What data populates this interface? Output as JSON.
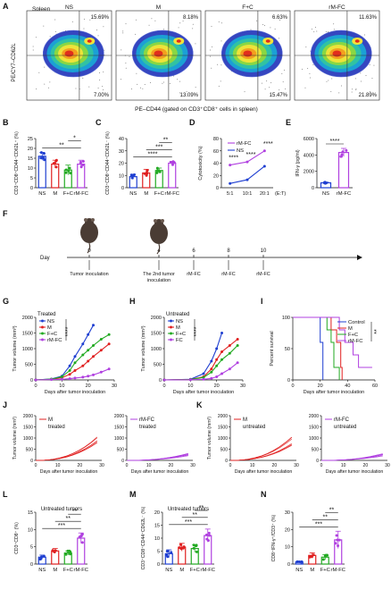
{
  "panel_letters": [
    "A",
    "B",
    "C",
    "D",
    "E",
    "F",
    "G",
    "H",
    "I",
    "J",
    "K",
    "L",
    "M",
    "N"
  ],
  "flow": {
    "title": "Spleen",
    "ylabel": "PE/CY7–CD62L",
    "xlabel": "PE–CD44 (gated on CD3⁺CD8⁺ cells in spleen)",
    "plots": [
      {
        "group": "NS",
        "ur": "15.69%",
        "lr": "7.00%"
      },
      {
        "group": "M",
        "ur": "8.18%",
        "lr": "13.09%"
      },
      {
        "group": "F+C",
        "ur": "6.63%",
        "lr": "15.47%"
      },
      {
        "group": "rM-FC",
        "ur": "11.63%",
        "lr": "21.89%"
      }
    ]
  },
  "colors": {
    "NS": "#1f3fd1",
    "M": "#e02020",
    "FC": "#22aa22",
    "rMFC": "#b040e0"
  },
  "chart_data": [
    {
      "panel": "B",
      "type": "bar",
      "ylabel": "CD3⁺CD8⁺CD44⁻CD62L⁺ (%)",
      "categories": [
        "NS",
        "M",
        "F+C",
        "rM-FC"
      ],
      "values": [
        16,
        12,
        9,
        12
      ],
      "errors": [
        2,
        2,
        2.5,
        2
      ],
      "ylim": [
        0,
        25
      ],
      "yticks": [
        "0",
        "5",
        "10",
        "15",
        "20",
        "25"
      ],
      "sig": [
        {
          "a": 0,
          "b": 3,
          "label": "**"
        },
        {
          "a": 2,
          "b": 3,
          "label": "*"
        }
      ]
    },
    {
      "panel": "C",
      "type": "bar",
      "ylabel": "CD3⁺CD8⁺CD44⁺CD62L⁻ (%)",
      "categories": [
        "NS",
        "M",
        "F+C",
        "rM-FC"
      ],
      "values": [
        9,
        12,
        14,
        20
      ],
      "errors": [
        2,
        3,
        2,
        1.5
      ],
      "ylim": [
        0,
        40
      ],
      "yticks": [
        "0",
        "10",
        "20",
        "30",
        "40"
      ],
      "sig": [
        {
          "a": 0,
          "b": 3,
          "label": "****"
        },
        {
          "a": 1,
          "b": 3,
          "label": "***"
        },
        {
          "a": 2,
          "b": 3,
          "label": "**"
        }
      ]
    },
    {
      "panel": "D",
      "type": "line",
      "ylabel": "Cytotoxicity (%)",
      "x": [
        "5:1",
        "10:1",
        "20:1"
      ],
      "xunit": "(E:T)",
      "ylim": [
        0,
        80
      ],
      "yticks": [
        "0",
        "20",
        "40",
        "60",
        "80"
      ],
      "series": [
        {
          "name": "rM-FC",
          "values": [
            37,
            42,
            60
          ]
        },
        {
          "name": "NS",
          "values": [
            7,
            13,
            35
          ]
        }
      ],
      "sig_labels": [
        "****",
        "****",
        "****"
      ]
    },
    {
      "panel": "E",
      "type": "bar",
      "ylabel": "IFN-γ (pg/ml)",
      "categories": [
        "NS",
        "rM-FC"
      ],
      "values": [
        600,
        4300
      ],
      "errors": [
        80,
        500
      ],
      "ylim": [
        0,
        6000
      ],
      "yticks": [
        "0",
        "2000",
        "4000",
        "6000"
      ],
      "sig": [
        {
          "a": 0,
          "b": 1,
          "label": "****"
        }
      ]
    },
    {
      "panel": "G",
      "type": "line",
      "ylabel": "Tumor volume (mm³)",
      "xlabel": "Days after tumor inoculation",
      "title": "Treated",
      "ylim": [
        0,
        2000
      ],
      "yticks": [
        "0",
        "500",
        "1000",
        "1500",
        "2000"
      ],
      "xticks": [
        "0",
        "10",
        "20",
        "30"
      ],
      "xlim": [
        0,
        30
      ],
      "sig_label": "****",
      "series": [
        {
          "name": "NS",
          "x": [
            0,
            6,
            10,
            13,
            15,
            18,
            20,
            22
          ],
          "values": [
            0,
            30,
            120,
            450,
            750,
            1150,
            1450,
            1750
          ]
        },
        {
          "name": "M",
          "x": [
            0,
            6,
            10,
            13,
            15,
            18,
            20,
            22,
            25,
            28
          ],
          "values": [
            0,
            20,
            70,
            180,
            300,
            450,
            600,
            750,
            950,
            1150
          ]
        },
        {
          "name": "F+C",
          "x": [
            0,
            6,
            10,
            13,
            15,
            18,
            20,
            22,
            25,
            28
          ],
          "values": [
            0,
            25,
            100,
            300,
            550,
            800,
            950,
            1100,
            1300,
            1450
          ]
        },
        {
          "name": "rM-FC",
          "x": [
            0,
            6,
            10,
            13,
            15,
            18,
            20,
            22,
            25,
            28
          ],
          "values": [
            0,
            10,
            20,
            40,
            60,
            90,
            120,
            160,
            250,
            350
          ]
        }
      ]
    },
    {
      "panel": "H",
      "type": "line",
      "ylabel": "Tumor volume (mm³)",
      "xlabel": "Days after tumor inoculation",
      "title": "Untreated",
      "ylim": [
        0,
        2000
      ],
      "yticks": [
        "0",
        "500",
        "1000",
        "1500",
        "2000"
      ],
      "xticks": [
        "0",
        "10",
        "20",
        "30"
      ],
      "xlim": [
        0,
        30
      ],
      "sig_label": "****",
      "series": [
        {
          "name": "NS",
          "x": [
            0,
            10,
            15,
            18,
            20,
            22
          ],
          "values": [
            0,
            20,
            200,
            600,
            1000,
            1500
          ]
        },
        {
          "name": "M",
          "x": [
            0,
            10,
            15,
            18,
            20,
            22,
            25,
            28
          ],
          "values": [
            0,
            10,
            100,
            350,
            650,
            900,
            1100,
            1300
          ]
        },
        {
          "name": "F+C",
          "x": [
            0,
            10,
            15,
            18,
            20,
            22,
            25,
            28
          ],
          "values": [
            0,
            10,
            80,
            250,
            450,
            650,
            850,
            1100
          ]
        },
        {
          "name": "FC",
          "x": [
            0,
            10,
            15,
            18,
            20,
            22,
            25,
            28
          ],
          "values": [
            0,
            5,
            20,
            50,
            100,
            200,
            350,
            550
          ]
        }
      ]
    },
    {
      "panel": "I",
      "type": "line",
      "ylabel": "Percent survival",
      "xlabel": "Days after tumor inoculation",
      "ylim": [
        0,
        100
      ],
      "yticks": [
        "0",
        "50",
        "100"
      ],
      "xticks": [
        "0",
        "20",
        "40",
        "60"
      ],
      "xlim": [
        0,
        60
      ],
      "sig_label": "**",
      "series": [
        {
          "name": "Control",
          "x": [
            0,
            20,
            20,
            22,
            22
          ],
          "values": [
            100,
            100,
            60,
            60,
            0
          ]
        },
        {
          "name": "M",
          "x": [
            0,
            28,
            28,
            32,
            32,
            35,
            35,
            36,
            36
          ],
          "values": [
            100,
            100,
            80,
            80,
            60,
            60,
            20,
            20,
            0
          ]
        },
        {
          "name": "F+C",
          "x": [
            0,
            25,
            25,
            28,
            28,
            30,
            30,
            34,
            34
          ],
          "values": [
            100,
            100,
            80,
            80,
            60,
            60,
            20,
            20,
            0
          ]
        },
        {
          "name": "rM-FC",
          "x": [
            0,
            34,
            34,
            38,
            38,
            44,
            44,
            48,
            48,
            58,
            58
          ],
          "values": [
            100,
            100,
            80,
            80,
            60,
            60,
            40,
            40,
            20,
            20,
            20
          ]
        }
      ]
    },
    {
      "panel": "L",
      "type": "bar",
      "title": "Untreated tumors",
      "ylabel": "CD3⁺CD8⁺ (%)",
      "categories": [
        "NS",
        "M",
        "F+C",
        "rM-FC"
      ],
      "values": [
        2,
        3.8,
        3.2,
        7.5
      ],
      "errors": [
        0.6,
        0.7,
        0.6,
        1.5
      ],
      "ylim": [
        0,
        15
      ],
      "yticks": [
        "0",
        "5",
        "10",
        "15"
      ],
      "sig": [
        {
          "a": 0,
          "b": 3,
          "label": "***"
        },
        {
          "a": 1,
          "b": 3,
          "label": "**"
        },
        {
          "a": 2,
          "b": 3,
          "label": "**"
        }
      ]
    },
    {
      "panel": "M",
      "type": "bar",
      "title": "Untreated tumors",
      "ylabel": "CD3⁺CD8⁺CD44⁺CD62L⁻ (%)",
      "categories": [
        "NS",
        "M",
        "F+C",
        "rM-FC"
      ],
      "values": [
        4,
        6.5,
        6,
        11
      ],
      "errors": [
        1.5,
        1.5,
        1.5,
        2.5
      ],
      "ylim": [
        0,
        20
      ],
      "yticks": [
        "0",
        "5",
        "10",
        "15",
        "20"
      ],
      "sig": [
        {
          "a": 0,
          "b": 3,
          "label": "***"
        },
        {
          "a": 1,
          "b": 3,
          "label": "**"
        },
        {
          "a": 2,
          "b": 3,
          "label": "**"
        }
      ]
    },
    {
      "panel": "N",
      "type": "bar",
      "ylabel": "CD8⁺IFN-γ⁺/CD3⁺ (%)",
      "categories": [
        "NS",
        "M",
        "F+C",
        "rM-FC"
      ],
      "values": [
        1.2,
        5,
        4,
        14
      ],
      "errors": [
        0.5,
        1.5,
        1.5,
        5
      ],
      "ylim": [
        0,
        30
      ],
      "yticks": [
        "0",
        "10",
        "20",
        "30"
      ],
      "sig": [
        {
          "a": 0,
          "b": 3,
          "label": "***"
        },
        {
          "a": 1,
          "b": 3,
          "label": "**"
        },
        {
          "a": 2,
          "b": 3,
          "label": "**"
        }
      ]
    }
  ],
  "timeline": {
    "axis_label": "Day",
    "ticks": [
      {
        "day": "0",
        "label": "Tumor inoculation"
      },
      {
        "day": "4",
        "label": "The 2nd tumor inoculation"
      },
      {
        "day": "6",
        "label": "rM-FC"
      },
      {
        "day": "8",
        "label": "rM-FC"
      },
      {
        "day": "10",
        "label": "rM-FC"
      }
    ]
  },
  "individual": [
    {
      "panel": "J",
      "label": "M",
      "sub": "treated",
      "color": "#e02020"
    },
    {
      "panel": "J",
      "label": "rM-FC",
      "sub": "treated",
      "color": "#b040e0"
    },
    {
      "panel": "K",
      "label": "M",
      "sub": "untreated",
      "color": "#e02020"
    },
    {
      "panel": "K",
      "label": "rM-FC",
      "sub": "untreated",
      "color": "#b040e0"
    }
  ],
  "individual_axes": {
    "ylabel": "Tumor volume (mm³)",
    "xlabel": "Days after tumor inoculation",
    "yticks": [
      "0",
      "500",
      "1000",
      "1500",
      "2000"
    ],
    "xticks": [
      "0",
      "10",
      "20",
      "30"
    ]
  }
}
